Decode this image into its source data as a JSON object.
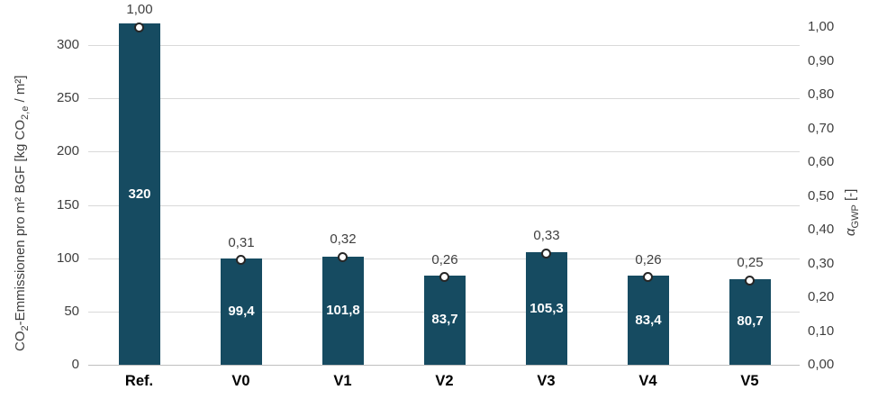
{
  "chart_data": {
    "type": "bar",
    "categories": [
      "Ref.",
      "V0",
      "V1",
      "V2",
      "V3",
      "V4",
      "V5"
    ],
    "series": [
      {
        "name": "CO2-Emmissionen pro m² BGF [kg CO2,e / m²]",
        "type": "bar",
        "axis": "left",
        "values": [
          320,
          99.4,
          101.8,
          83.7,
          105.3,
          83.4,
          80.7
        ],
        "value_labels": [
          "320",
          "99,4",
          "101,8",
          "83,7",
          "105,3",
          "83,4",
          "80,7"
        ]
      },
      {
        "name": "alpha_GWP [-]",
        "type": "scatter",
        "axis": "right",
        "values": [
          1.0,
          0.31,
          0.32,
          0.26,
          0.33,
          0.26,
          0.25
        ],
        "value_labels": [
          "1,00",
          "0,31",
          "0,32",
          "0,26",
          "0,33",
          "0,26",
          "0,25"
        ]
      }
    ],
    "left_axis": {
      "label": "CO2-Emmissionen pro m² BGF [kg CO2,e / m²]",
      "tick_values": [
        0,
        50,
        100,
        150,
        200,
        250,
        300
      ],
      "tick_labels": [
        "0",
        "50",
        "100",
        "150",
        "200",
        "250",
        "300"
      ],
      "range": [
        0,
        335
      ]
    },
    "right_axis": {
      "label": "alpha_GWP [-]",
      "tick_values": [
        0,
        0.1,
        0.2,
        0.3,
        0.4,
        0.5,
        0.6,
        0.7,
        0.8,
        0.9,
        1.0
      ],
      "tick_labels": [
        "0,00",
        "0,10",
        "0,20",
        "0,30",
        "0,40",
        "0,50",
        "0,60",
        "0,70",
        "0,80",
        "0,90",
        "1,00"
      ],
      "range": [
        0,
        1.05
      ]
    },
    "grid": true,
    "legend": false
  },
  "axes": {
    "left": {
      "title_parts": [
        "CO",
        "2",
        "-Emmissionen pro m² BGF [kg CO",
        "2,e",
        " / m²]"
      ]
    },
    "right": {
      "title_parts": [
        "α",
        "GWP",
        " [-]"
      ]
    }
  },
  "colors": {
    "bar_fill": "#164b61",
    "grid_line": "#d9d9d9",
    "axis_line": "#bfbfbf",
    "tick_text": "#3f3f3f",
    "category_text": "#000000",
    "bar_value_text": "#ffffff",
    "marker_fill": "#ffffff",
    "marker_stroke": "#262626",
    "axis_title_text": "#3f3f3f"
  }
}
